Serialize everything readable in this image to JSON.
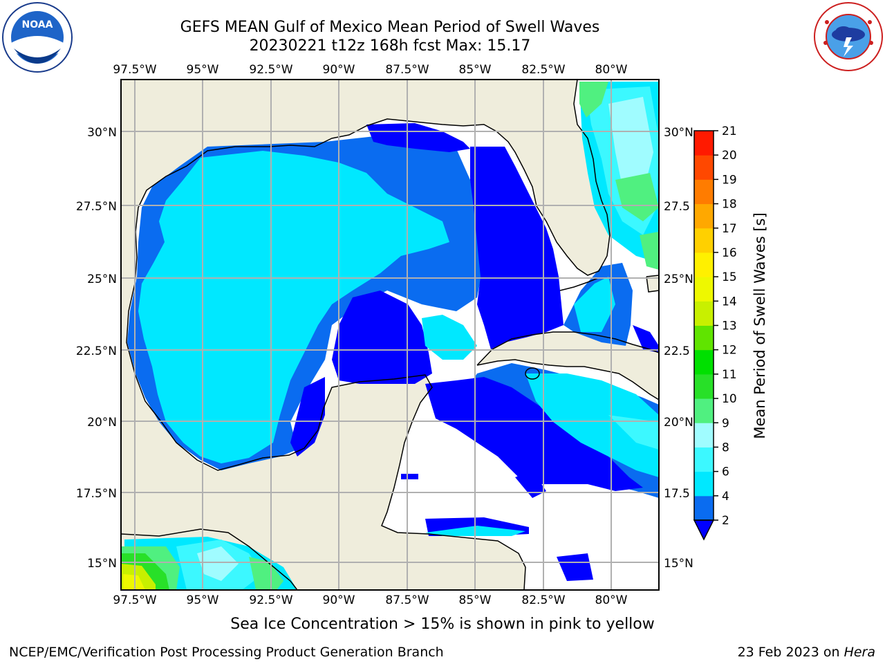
{
  "header": {
    "title_line1": "GEFS MEAN Gulf of Mexico Mean Period of Swell Waves",
    "title_line2": "20230221 t12z 168h fcst   Max: 15.17"
  },
  "logos": {
    "left": "noaa-logo",
    "right": "national-weather-service-logo"
  },
  "map": {
    "lon_labels": [
      "97.5°W",
      "95°W",
      "92.5°W",
      "90°W",
      "87.5°W",
      "85°W",
      "82.5°W",
      "80°W"
    ],
    "lat_labels_left": [
      "30°N",
      "27.5°N",
      "25°N",
      "22.5°N",
      "20°N",
      "17.5°N",
      "15°N"
    ],
    "lat_labels_right": [
      "30°N",
      "27.5",
      "25°N",
      "22.5",
      "20°N",
      "17.5",
      "15°N"
    ],
    "colors": {
      "land": "#efeddc",
      "ocean_no_data": "#ffffff",
      "grid": "#b0b0b0"
    }
  },
  "colorbar": {
    "label": "Mean Period of Swell Waves [s]",
    "ticks": [
      "2",
      "4",
      "6",
      "8",
      "9",
      "10",
      "11",
      "12",
      "13",
      "14",
      "15",
      "16",
      "17",
      "18",
      "19",
      "20",
      "21"
    ],
    "colors": [
      "#0000ff",
      "#0a6cf0",
      "#00e8ff",
      "#3cf8ff",
      "#a0fcff",
      "#50f080",
      "#28e028",
      "#00e000",
      "#60e400",
      "#c8f000",
      "#eef800",
      "#fff000",
      "#ffd000",
      "#ffa800",
      "#ff7c00",
      "#ff4800",
      "#ff1a00",
      "#ff0000"
    ],
    "extend": "min"
  },
  "footnote": "Sea Ice Concentration > 15% is shown in pink to yellow",
  "footer": {
    "left": "NCEP/EMC/Verification Post Processing Product Generation Branch",
    "right_prefix": "23 Feb 2023 on ",
    "right_host": "Hera"
  }
}
